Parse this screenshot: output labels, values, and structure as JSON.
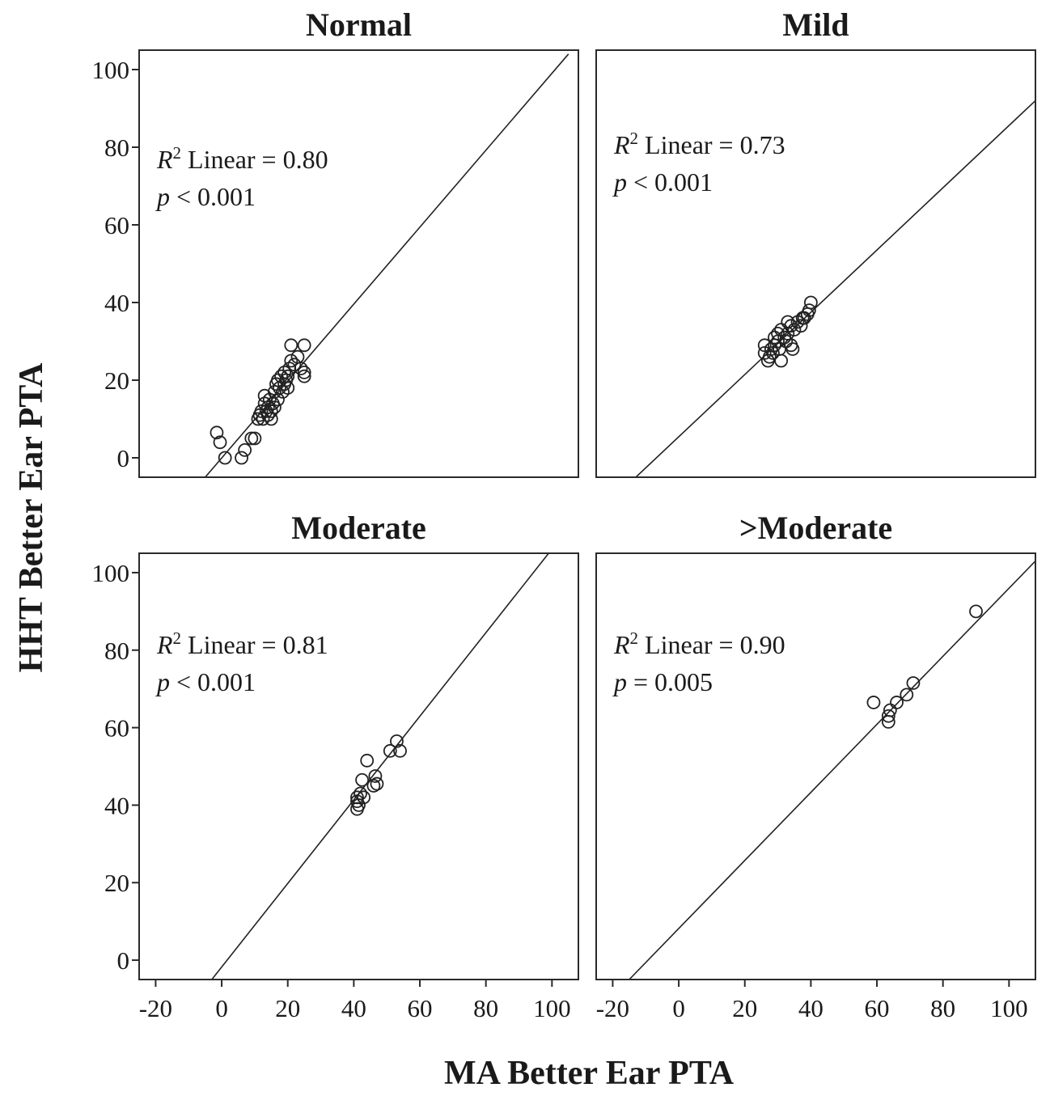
{
  "xlabel": "MA Better Ear PTA",
  "ylabel": "HHT Better Ear PTA",
  "chart_data": [
    {
      "type": "scatter",
      "title": "Normal",
      "xlim": [
        -25,
        108
      ],
      "ylim": [
        -5,
        105
      ],
      "xticks": [
        -20,
        0,
        20,
        40,
        60,
        80,
        100
      ],
      "yticks": [
        0,
        20,
        40,
        60,
        80,
        100
      ],
      "annotation": {
        "stat_label": "Linear = 0.80",
        "p_text": "< 0.001"
      },
      "fit_line": {
        "x": [
          -5,
          105
        ],
        "y": [
          -5,
          104
        ]
      },
      "points": [
        [
          -1.5,
          6.5
        ],
        [
          -0.5,
          4
        ],
        [
          1,
          0
        ],
        [
          6,
          0
        ],
        [
          7,
          2
        ],
        [
          9,
          5
        ],
        [
          10,
          5
        ],
        [
          11,
          10
        ],
        [
          11.5,
          11
        ],
        [
          12,
          12
        ],
        [
          12.5,
          10
        ],
        [
          13,
          14
        ],
        [
          13,
          16
        ],
        [
          13.5,
          12
        ],
        [
          14,
          13
        ],
        [
          14,
          11
        ],
        [
          14.5,
          15
        ],
        [
          15,
          12
        ],
        [
          15,
          10
        ],
        [
          15.5,
          14
        ],
        [
          16,
          17
        ],
        [
          16,
          13
        ],
        [
          16.5,
          19
        ],
        [
          17,
          20
        ],
        [
          17,
          15
        ],
        [
          17.5,
          18
        ],
        [
          18,
          21
        ],
        [
          18.5,
          17
        ],
        [
          19,
          19
        ],
        [
          19,
          22
        ],
        [
          19.5,
          20
        ],
        [
          20,
          18
        ],
        [
          20,
          21
        ],
        [
          20.5,
          23
        ],
        [
          21,
          29
        ],
        [
          21,
          25
        ],
        [
          22,
          24
        ],
        [
          23,
          26
        ],
        [
          24,
          23
        ],
        [
          25,
          21
        ],
        [
          25,
          22
        ],
        [
          25,
          29
        ]
      ]
    },
    {
      "type": "scatter",
      "title": "Mild",
      "xlim": [
        -25,
        108
      ],
      "ylim": [
        -5,
        105
      ],
      "xticks": [
        -20,
        0,
        20,
        40,
        60,
        80,
        100
      ],
      "yticks": [
        0,
        20,
        40,
        60,
        80,
        100
      ],
      "annotation": {
        "stat_label": "Linear = 0.73",
        "p_text": "< 0.001"
      },
      "fit_line": {
        "x": [
          -13,
          108
        ],
        "y": [
          -5,
          92
        ]
      },
      "points": [
        [
          26,
          29
        ],
        [
          26,
          27
        ],
        [
          27,
          25
        ],
        [
          27.5,
          26
        ],
        [
          28,
          28
        ],
        [
          28.5,
          27
        ],
        [
          29,
          29
        ],
        [
          29,
          31
        ],
        [
          30,
          30
        ],
        [
          30,
          32
        ],
        [
          30.5,
          28
        ],
        [
          31,
          25
        ],
        [
          31,
          33
        ],
        [
          32,
          31
        ],
        [
          32.5,
          30
        ],
        [
          33,
          32
        ],
        [
          33,
          35
        ],
        [
          34,
          34
        ],
        [
          34,
          29
        ],
        [
          34.5,
          28
        ],
        [
          35,
          33
        ],
        [
          36,
          35
        ],
        [
          37,
          34
        ],
        [
          37.5,
          36
        ],
        [
          38,
          36
        ],
        [
          39,
          37
        ],
        [
          39.5,
          38
        ],
        [
          40,
          40
        ]
      ]
    },
    {
      "type": "scatter",
      "title": "Moderate",
      "xlim": [
        -25,
        108
      ],
      "ylim": [
        -5,
        105
      ],
      "xticks": [
        -20,
        0,
        20,
        40,
        60,
        80,
        100
      ],
      "yticks": [
        0,
        20,
        40,
        60,
        80,
        100
      ],
      "annotation": {
        "stat_label": "Linear = 0.81",
        "p_text": "< 0.001"
      },
      "fit_line": {
        "x": [
          -3,
          99
        ],
        "y": [
          -5,
          105
        ]
      },
      "points": [
        [
          41,
          39
        ],
        [
          41,
          41
        ],
        [
          41,
          42
        ],
        [
          41.5,
          40
        ],
        [
          42,
          43
        ],
        [
          42.5,
          46.5
        ],
        [
          43,
          42
        ],
        [
          44,
          51.5
        ],
        [
          46,
          45
        ],
        [
          46.5,
          47.5
        ],
        [
          47,
          45.5
        ],
        [
          51,
          54
        ],
        [
          53,
          56.5
        ],
        [
          54,
          54
        ]
      ]
    },
    {
      "type": "scatter",
      "title": ">Moderate",
      "xlim": [
        -25,
        108
      ],
      "ylim": [
        -5,
        105
      ],
      "xticks": [
        -20,
        0,
        20,
        40,
        60,
        80,
        100
      ],
      "yticks": [
        0,
        20,
        40,
        60,
        80,
        100
      ],
      "annotation": {
        "stat_label": "Linear = 0.90",
        "p_text": "= 0.005"
      },
      "fit_line": {
        "x": [
          -15,
          108
        ],
        "y": [
          -5,
          103
        ]
      },
      "points": [
        [
          59,
          66.5
        ],
        [
          63.5,
          61.5
        ],
        [
          63.5,
          63
        ],
        [
          64,
          64.5
        ],
        [
          66,
          66.5
        ],
        [
          69,
          68.5
        ],
        [
          71,
          71.5
        ],
        [
          90,
          90
        ]
      ]
    }
  ]
}
